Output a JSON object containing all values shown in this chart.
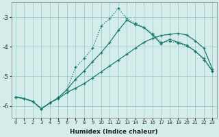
{
  "xlabel": "Humidex (Indice chaleur)",
  "bg_color": "#d4ecea",
  "grid_color": "#9ececa",
  "line_color": "#1a7a6e",
  "xlim": [
    -0.5,
    23.5
  ],
  "ylim": [
    -6.4,
    -2.5
  ],
  "yticks": [
    -6,
    -5,
    -4,
    -3
  ],
  "xticks": [
    0,
    1,
    2,
    3,
    4,
    5,
    6,
    7,
    8,
    9,
    10,
    11,
    12,
    13,
    14,
    15,
    16,
    17,
    18,
    19,
    20,
    21,
    22,
    23
  ],
  "s1_x": [
    0,
    1,
    2,
    3,
    4,
    5,
    6,
    7,
    8,
    9,
    10,
    11,
    12,
    13,
    14,
    15,
    16,
    17,
    18,
    19,
    20,
    21,
    22,
    23
  ],
  "s1_y": [
    -5.7,
    -5.75,
    -5.85,
    -6.1,
    -5.9,
    -5.75,
    -5.55,
    -5.4,
    -5.25,
    -5.05,
    -4.85,
    -4.65,
    -4.45,
    -4.25,
    -4.05,
    -3.85,
    -3.72,
    -3.62,
    -3.58,
    -3.55,
    -3.6,
    -3.8,
    -4.05,
    -4.75
  ],
  "s2_x": [
    0,
    1,
    2,
    3,
    4,
    5,
    6,
    7,
    8,
    9,
    10,
    11,
    12,
    13,
    14,
    15,
    16,
    17,
    18,
    19,
    20,
    21,
    22,
    23
  ],
  "s2_y": [
    -5.7,
    -5.75,
    -5.85,
    -6.1,
    -5.9,
    -5.72,
    -5.45,
    -5.1,
    -4.82,
    -4.5,
    -4.2,
    -3.85,
    -3.45,
    -3.1,
    -3.25,
    -3.35,
    -3.6,
    -3.9,
    -3.75,
    -3.85,
    -3.95,
    -4.15,
    -4.4,
    -4.82
  ],
  "s3_x": [
    0,
    2,
    3,
    4,
    5,
    6,
    7,
    8,
    9,
    10,
    11,
    12,
    13,
    14,
    15,
    16,
    17,
    18,
    19,
    20,
    21,
    22,
    23
  ],
  "s3_y": [
    -5.7,
    -5.85,
    -6.1,
    -5.9,
    -5.72,
    -5.45,
    -4.7,
    -4.4,
    -4.05,
    -3.3,
    -3.05,
    -2.7,
    -3.05,
    -3.2,
    -3.35,
    -3.55,
    -3.85,
    -3.82,
    -3.88,
    -3.98,
    -4.15,
    -4.45,
    -4.82
  ],
  "marker": "+"
}
